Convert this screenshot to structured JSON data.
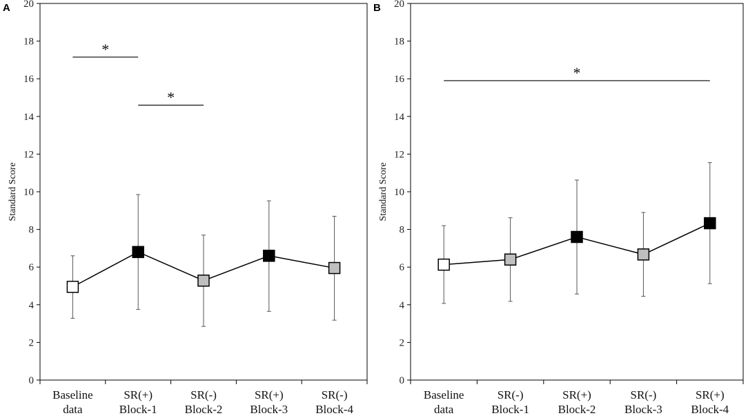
{
  "chart_data": [
    {
      "type": "line",
      "panel": "A",
      "ylabel": "Standard Score",
      "ylim": [
        0,
        20
      ],
      "yticks": [
        "0",
        "2",
        "4",
        "6",
        "8",
        "10",
        "12",
        "14",
        "16",
        "18",
        "20"
      ],
      "categories": [
        [
          "Baseline",
          "data"
        ],
        [
          "SR(+)",
          "Block-1"
        ],
        [
          "SR(-)",
          "Block-2"
        ],
        [
          "SR(+)",
          "Block-3"
        ],
        [
          "SR(-)",
          "Block-4"
        ]
      ],
      "values": [
        4.95,
        6.8,
        5.28,
        6.6,
        5.95
      ],
      "error_low": [
        3.28,
        3.75,
        2.85,
        3.65,
        3.18
      ],
      "error_high": [
        6.6,
        9.85,
        7.7,
        9.52,
        8.7
      ],
      "marker_fill": [
        "#ffffff",
        "#000000",
        "#bfbfbf",
        "#000000",
        "#bfbfbf"
      ],
      "significance": [
        {
          "from": 0,
          "to": 1,
          "y": 17.15,
          "label": "*"
        },
        {
          "from": 1,
          "to": 2,
          "y": 14.6,
          "label": "*"
        }
      ]
    },
    {
      "type": "line",
      "panel": "B",
      "ylabel": "Standard Score",
      "ylim": [
        0,
        20
      ],
      "yticks": [
        "0",
        "2",
        "4",
        "6",
        "8",
        "10",
        "12",
        "14",
        "16",
        "18",
        "20"
      ],
      "categories": [
        [
          "Baseline",
          "data"
        ],
        [
          "SR(-)",
          "Block-1"
        ],
        [
          "SR(+)",
          "Block-2"
        ],
        [
          "SR(-)",
          "Block-3"
        ],
        [
          "SR(+)",
          "Block-4"
        ]
      ],
      "values": [
        6.13,
        6.4,
        7.6,
        6.67,
        8.33
      ],
      "error_low": [
        4.07,
        4.18,
        4.57,
        4.45,
        5.12
      ],
      "error_high": [
        8.2,
        8.62,
        10.62,
        8.9,
        11.55
      ],
      "marker_fill": [
        "#ffffff",
        "#bfbfbf",
        "#000000",
        "#bfbfbf",
        "#000000"
      ],
      "significance": [
        {
          "from": 0,
          "to": 4,
          "y": 15.9,
          "label": "*"
        }
      ]
    }
  ]
}
